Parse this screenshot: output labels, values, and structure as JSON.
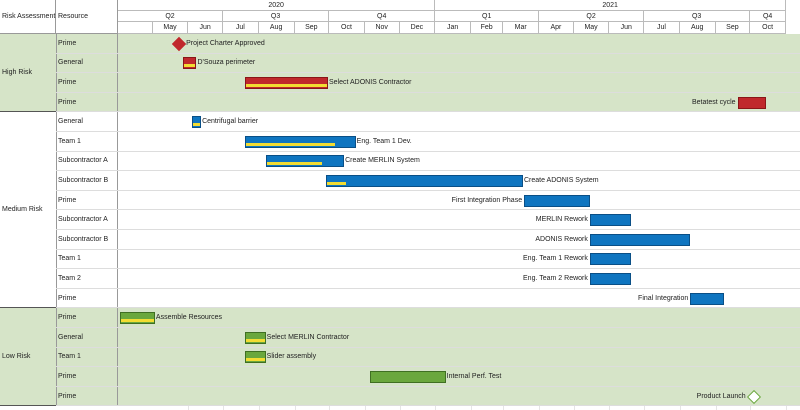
{
  "header": {
    "col_risk": "Risk Assessment",
    "col_resource": "Resource",
    "years": [
      {
        "label": "2020",
        "start": "2020-04",
        "end": "2021-01"
      },
      {
        "label": "2021",
        "start": "2021-01",
        "end": "2021-11"
      }
    ],
    "quarters": [
      {
        "label": "Q2",
        "start": "2020-04",
        "end": "2020-07"
      },
      {
        "label": "Q3",
        "start": "2020-07",
        "end": "2020-10"
      },
      {
        "label": "Q4",
        "start": "2020-10",
        "end": "2021-01"
      },
      {
        "label": "Q1",
        "start": "2021-01",
        "end": "2021-04"
      },
      {
        "label": "Q2",
        "start": "2021-04",
        "end": "2021-07"
      },
      {
        "label": "Q3",
        "start": "2021-07",
        "end": "2021-10"
      },
      {
        "label": "Q4",
        "start": "2021-10",
        "end": "2021-11"
      }
    ],
    "months": [
      "May",
      "Jun",
      "Jul",
      "Aug",
      "Sep",
      "Oct",
      "Nov",
      "Dec",
      "Jan",
      "Feb",
      "Mar",
      "Apr",
      "May",
      "Jun",
      "Jul",
      "Aug",
      "Sep",
      "Oct"
    ]
  },
  "colors": {
    "high_band": "#d6e4c8",
    "medium_band": "#ffffff",
    "low_band": "#d6e4c8",
    "red": "#c0282c",
    "blue": "#0f75c0",
    "green": "#6aa73d",
    "progress": "#f2dc32"
  },
  "groups": [
    {
      "name": "High Risk",
      "color": "#c0282c",
      "band": "#d6e4c8",
      "tasks": [
        {
          "resource": "Prime",
          "label": "Project Charter Approved",
          "type": "milestone",
          "start": "2020-05-24",
          "label_pos": "right"
        },
        {
          "resource": "General",
          "label": "D'Souza perimeter",
          "type": "bar",
          "start": "2020-05-27",
          "end": "2020-06-08",
          "progress": 1.0,
          "label_pos": "right"
        },
        {
          "resource": "Prime",
          "label": "Select ADONIS Contractor",
          "type": "bar",
          "start": "2020-07-20",
          "end": "2020-09-30",
          "progress": 1.0,
          "label_pos": "right"
        },
        {
          "resource": "Prime",
          "label": "Betatest cycle",
          "type": "bar",
          "start": "2021-09-20",
          "end": "2021-10-15",
          "progress": 0,
          "label_pos": "left"
        }
      ]
    },
    {
      "name": "Medium Risk",
      "color": "#0f75c0",
      "band": "#ffffff",
      "tasks": [
        {
          "resource": "General",
          "label": "Centrifugal barrier",
          "type": "bar",
          "start": "2020-06-04",
          "end": "2020-06-12",
          "progress": 1.0,
          "label_pos": "right"
        },
        {
          "resource": "Team 1",
          "label": "Eng. Team 1 Dev.",
          "type": "bar",
          "start": "2020-07-20",
          "end": "2020-10-24",
          "progress": 0.82,
          "label_pos": "right"
        },
        {
          "resource": "Subcontractor A",
          "label": "Create MERLIN System",
          "type": "bar",
          "start": "2020-08-07",
          "end": "2020-10-14",
          "progress": 0.72,
          "label_pos": "right"
        },
        {
          "resource": "Subcontractor B",
          "label": "Create ADONIS System",
          "type": "bar",
          "start": "2020-09-28",
          "end": "2021-03-18",
          "progress": 0.1,
          "label_pos": "right"
        },
        {
          "resource": "Prime",
          "label": "First Integration Phase",
          "type": "bar",
          "start": "2021-03-19",
          "end": "2021-05-15",
          "progress": 0,
          "label_pos": "left"
        },
        {
          "resource": "Subcontractor A",
          "label": "MERLIN Rework",
          "type": "bar",
          "start": "2021-05-15",
          "end": "2021-06-20",
          "progress": 0,
          "label_pos": "left"
        },
        {
          "resource": "Subcontractor B",
          "label": "ADONIS Rework",
          "type": "bar",
          "start": "2021-05-15",
          "end": "2021-08-10",
          "progress": 0,
          "label_pos": "left"
        },
        {
          "resource": "Team 1",
          "label": "Eng. Team 1 Rework",
          "type": "bar",
          "start": "2021-05-15",
          "end": "2021-06-20",
          "progress": 0,
          "label_pos": "left"
        },
        {
          "resource": "Team 2",
          "label": "Eng. Team 2 Rework",
          "type": "bar",
          "start": "2021-05-15",
          "end": "2021-06-20",
          "progress": 0,
          "label_pos": "left"
        },
        {
          "resource": "Prime",
          "label": "Final Integration",
          "type": "bar",
          "start": "2021-08-10",
          "end": "2021-09-08",
          "progress": 0,
          "label_pos": "left"
        }
      ]
    },
    {
      "name": "Low Risk",
      "color": "#6aa73d",
      "band": "#d6e4c8",
      "tasks": [
        {
          "resource": "Prime",
          "label": "Assemble Resources",
          "type": "bar",
          "start": "2020-04-03",
          "end": "2020-05-03",
          "progress": 1.0,
          "label_pos": "right"
        },
        {
          "resource": "General",
          "label": "Select MERLIN Contractor",
          "type": "bar",
          "start": "2020-07-20",
          "end": "2020-08-07",
          "progress": 1.0,
          "label_pos": "right"
        },
        {
          "resource": "Team 1",
          "label": "Slider assembly",
          "type": "bar",
          "start": "2020-07-20",
          "end": "2020-08-07",
          "progress": 1.0,
          "label_pos": "right"
        },
        {
          "resource": "Prime",
          "label": "Internal Perf. Test",
          "type": "bar",
          "start": "2020-11-05",
          "end": "2021-01-10",
          "progress": 0,
          "label_pos": "right"
        },
        {
          "resource": "Prime",
          "label": "Product Launch",
          "type": "milestone",
          "start": "2021-10-04",
          "label_pos": "left"
        }
      ]
    }
  ]
}
